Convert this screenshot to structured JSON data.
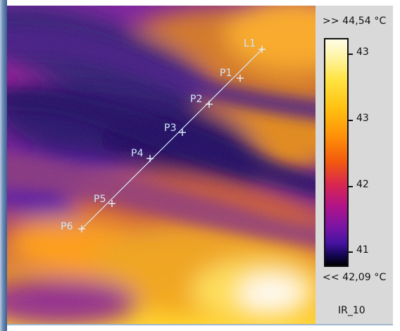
{
  "image": {
    "label_name": "IR_10"
  },
  "scale": {
    "max_label": ">> 44,54 °C",
    "min_label": "<< 42,09 °C",
    "ticks": [
      {
        "label": "43"
      },
      {
        "label": "43"
      },
      {
        "label": "42"
      },
      {
        "label": "41"
      }
    ]
  },
  "markers": [
    {
      "label": "L1"
    },
    {
      "label": "P1"
    },
    {
      "label": "P2"
    },
    {
      "label": "P3"
    },
    {
      "label": "P4"
    },
    {
      "label": "P5"
    },
    {
      "label": "P6"
    }
  ],
  "colors": {
    "line": "#d6ecff",
    "label": "#cfe7ff",
    "panel": "#d9d9d9"
  }
}
